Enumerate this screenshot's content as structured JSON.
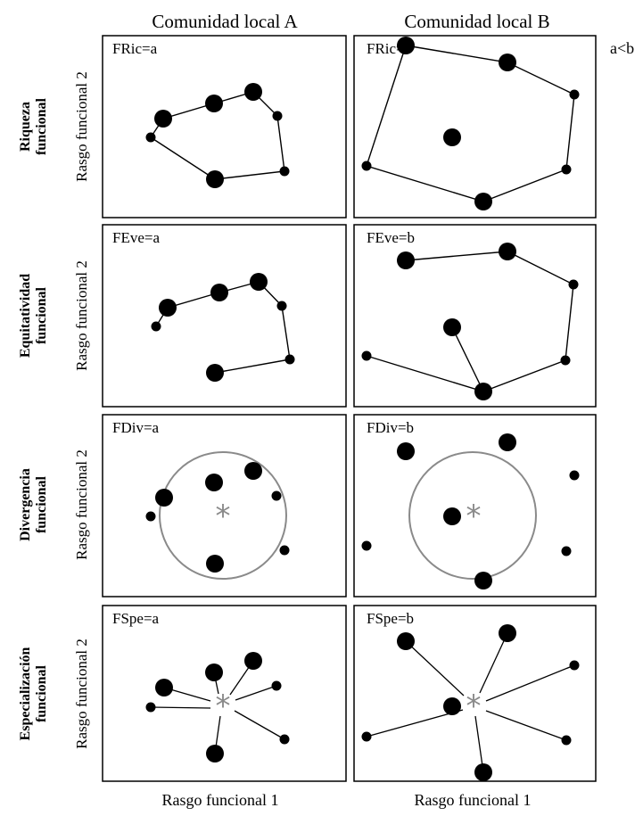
{
  "columns": [
    "Comunidad local A",
    "Comunidad local B"
  ],
  "relation": "a<b",
  "xlabel": "Rasgo funcional 1",
  "ylabel": "Rasgo funcional 2",
  "star_glyph": "*",
  "rows": [
    {
      "title": "Riqueza funcional",
      "panels": [
        "FRic=a",
        "FRic=b"
      ]
    },
    {
      "title": "Equitatividad funcional",
      "panels": [
        "FEve=a",
        "FEve=b"
      ]
    },
    {
      "title": "Divergencia funcional",
      "panels": [
        "FDiv=a",
        "FDiv=b"
      ]
    },
    {
      "title": "Especialización funcional",
      "panels": [
        "FSpe=a",
        "FSpe=b"
      ]
    }
  ],
  "colors": {
    "points": "#000000",
    "lines": "#000000",
    "centroid": "#8a8a8a",
    "circle": "#8a8a8a",
    "frame": "#000000"
  }
}
